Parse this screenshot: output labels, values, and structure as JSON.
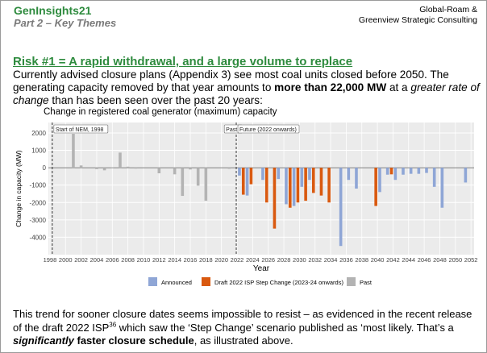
{
  "header": {
    "title": "GenInsights21",
    "subtitle": "Part 2 – Key Themes",
    "org_line1": "Global-Roam &",
    "org_line2": "Greenview Strategic Consulting"
  },
  "heading": "Risk #1 = A rapid withdrawal, and a large volume to replace",
  "intro": {
    "t1": "Currently advised closure plans (Appendix 3) see most coal units closed before 2050. The generating capacity removed by that year amounts to ",
    "b1": "more than 22,000 MW",
    "t2": " at a ",
    "i1": "greater rate of change",
    "t3": " than has been seen over the past 20 years:"
  },
  "chart_data": {
    "type": "bar",
    "title": "Change in registered coal generator (maximum) capacity",
    "xlabel": "Year",
    "ylabel": "Change in capacity (MW)",
    "ylim": [
      -5000,
      2600
    ],
    "xlim": [
      1997.8,
      2052.4
    ],
    "yticks": [
      -4000,
      -3000,
      -2000,
      -1000,
      0,
      1000,
      2000
    ],
    "xticks": [
      1998,
      2000,
      2002,
      2004,
      2006,
      2008,
      2010,
      2012,
      2014,
      2016,
      2018,
      2020,
      2022,
      2024,
      2026,
      2028,
      2030,
      2032,
      2034,
      2036,
      2038,
      2040,
      2042,
      2044,
      2046,
      2048,
      2050,
      2052
    ],
    "grid": true,
    "legend_position": "bottom",
    "annotations": [
      {
        "x": 1998.3,
        "label": "Start of NEM, 1998"
      },
      {
        "x": 2021.5,
        "label": "Past"
      },
      {
        "x": 2022.0,
        "label": "Future (2022 onwards)"
      }
    ],
    "colors": {
      "Announced": "#8fa6d6",
      "Draft 2022 ISP Step Change (2023-24 onwards)": "#d9590f",
      "Past": "#b3b3b3"
    },
    "series": [
      {
        "name": "Past",
        "points": [
          [
            2001,
            1950
          ],
          [
            2002,
            130
          ],
          [
            2004,
            -80
          ],
          [
            2005,
            -150
          ],
          [
            2006,
            30
          ],
          [
            2007,
            870
          ],
          [
            2008,
            60
          ],
          [
            2009,
            -50
          ],
          [
            2012,
            -320
          ],
          [
            2014,
            -380
          ],
          [
            2015,
            -1620
          ],
          [
            2016,
            -100
          ],
          [
            2017,
            -1030
          ],
          [
            2018,
            -1900
          ],
          [
            2021,
            -60
          ]
        ]
      },
      {
        "name": "Announced",
        "points": [
          [
            2022.3,
            -450
          ],
          [
            2023.3,
            -1600
          ],
          [
            2025.3,
            -700
          ],
          [
            2027.3,
            -650
          ],
          [
            2028.3,
            -2100
          ],
          [
            2029.3,
            -2200
          ],
          [
            2030.3,
            -1100
          ],
          [
            2031.3,
            -700
          ],
          [
            2035.3,
            -4500
          ],
          [
            2036.3,
            -700
          ],
          [
            2037.3,
            -1200
          ],
          [
            2040.3,
            -1400
          ],
          [
            2041.3,
            -400
          ],
          [
            2042.3,
            -700
          ],
          [
            2043.3,
            -400
          ],
          [
            2044.3,
            -350
          ],
          [
            2045.3,
            -350
          ],
          [
            2046.3,
            -300
          ],
          [
            2047.3,
            -1100
          ],
          [
            2048.3,
            -2300
          ],
          [
            2051.3,
            -850
          ]
        ]
      },
      {
        "name": "Draft 2022 ISP Step Change (2023-24 onwards)",
        "points": [
          [
            2022.8,
            -1550
          ],
          [
            2023.8,
            -950
          ],
          [
            2025.8,
            -2000
          ],
          [
            2026.8,
            -3500
          ],
          [
            2028.8,
            -2300
          ],
          [
            2029.8,
            -2000
          ],
          [
            2030.8,
            -1900
          ],
          [
            2031.8,
            -1450
          ],
          [
            2032.8,
            -1600
          ],
          [
            2033.8,
            -2000
          ],
          [
            2039.8,
            -2200
          ],
          [
            2041.8,
            -380
          ]
        ]
      }
    ]
  },
  "outro": {
    "t1": "This trend for sooner closure dates seems impossible to resist – as evidenced in the recent release of the draft 2022 ISP",
    "sup": "36",
    "t2": " which saw the ‘Step Change’ scenario published as ‘most likely.  That’s a ",
    "b1": "significantly",
    "b2": "faster closure schedule",
    "t3": ", as illustrated above."
  }
}
